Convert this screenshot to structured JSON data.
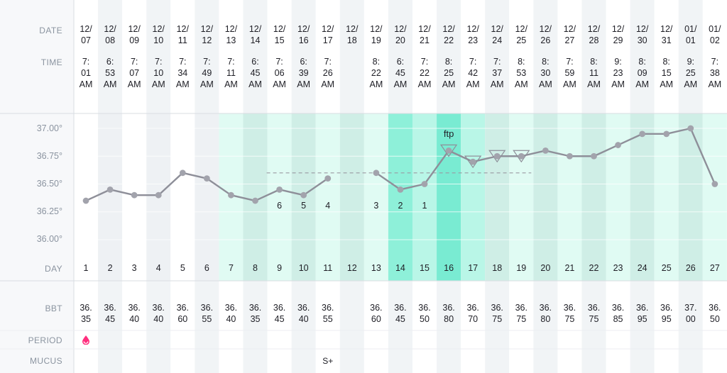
{
  "labels": {
    "date": "DATE",
    "time": "TIME",
    "day": "DAY",
    "bbt": "BBT",
    "period": "PERIOD",
    "mucus": "MUCUS",
    "ftp": "ftp"
  },
  "y_axis": {
    "ticks": [
      "37.00°",
      "36.75°",
      "36.50°",
      "36.25°",
      "36.00°"
    ],
    "values": [
      37.0,
      36.75,
      36.5,
      36.25,
      36.0
    ],
    "min": 36.0,
    "max": 37.0
  },
  "colors": {
    "line": "#8e8f99",
    "point": "#a2a3ac",
    "coverline": "#9a9aa2",
    "fertile": "#e0fbf3",
    "fertile_alt": "#cfeee6",
    "peak": "#8ef0d9",
    "peak_near": "#b9f6e7",
    "ovulation": "#79ebd2",
    "period_drop": "#ff2e7e"
  },
  "days": [
    {
      "day": "1",
      "date": "12/\n07",
      "time": "7:\n01\nAM",
      "bbt": "36.\n35",
      "temp": 36.35,
      "period": true
    },
    {
      "day": "2",
      "date": "12/\n08",
      "time": "6:\n53\nAM",
      "bbt": "36.\n45",
      "temp": 36.45
    },
    {
      "day": "3",
      "date": "12/\n09",
      "time": "7:\n07\nAM",
      "bbt": "36.\n40",
      "temp": 36.4
    },
    {
      "day": "4",
      "date": "12/\n10",
      "time": "7:\n10\nAM",
      "bbt": "36.\n40",
      "temp": 36.4
    },
    {
      "day": "5",
      "date": "12/\n11",
      "time": "7:\n34\nAM",
      "bbt": "36.\n60",
      "temp": 36.6
    },
    {
      "day": "6",
      "date": "12/\n12",
      "time": "7:\n49\nAM",
      "bbt": "36.\n55",
      "temp": 36.55
    },
    {
      "day": "7",
      "date": "12/\n13",
      "time": "7:\n11\nAM",
      "bbt": "36.\n40",
      "temp": 36.4
    },
    {
      "day": "8",
      "date": "12/\n14",
      "time": "6:\n45\nAM",
      "bbt": "36.\n35",
      "temp": 36.35
    },
    {
      "day": "9",
      "date": "12/\n15",
      "time": "7:\n06\nAM",
      "bbt": "36.\n45",
      "temp": 36.45,
      "count": "6"
    },
    {
      "day": "10",
      "date": "12/\n16",
      "time": "6:\n39\nAM",
      "bbt": "36.\n40",
      "temp": 36.4,
      "count": "5"
    },
    {
      "day": "11",
      "date": "12/\n17",
      "time": "7:\n26\nAM",
      "bbt": "36.\n55",
      "temp": 36.55,
      "count": "4",
      "mucus": "S+"
    },
    {
      "day": "12",
      "date": "12/\n18",
      "time": "",
      "bbt": "",
      "temp": null
    },
    {
      "day": "13",
      "date": "12/\n19",
      "time": "8:\n22\nAM",
      "bbt": "36.\n60",
      "temp": 36.6,
      "count": "3"
    },
    {
      "day": "14",
      "date": "12/\n20",
      "time": "6:\n45\nAM",
      "bbt": "36.\n45",
      "temp": 36.45,
      "count": "2"
    },
    {
      "day": "15",
      "date": "12/\n21",
      "time": "7:\n22\nAM",
      "bbt": "36.\n50",
      "temp": 36.5,
      "count": "1"
    },
    {
      "day": "16",
      "date": "12/\n22",
      "time": "8:\n25\nAM",
      "bbt": "36.\n80",
      "temp": 36.8,
      "marker": true
    },
    {
      "day": "17",
      "date": "12/\n23",
      "time": "7:\n42\nAM",
      "bbt": "36.\n70",
      "temp": 36.7,
      "marker": true
    },
    {
      "day": "18",
      "date": "12/\n24",
      "time": "7:\n37\nAM",
      "bbt": "36.\n75",
      "temp": 36.75,
      "marker": true
    },
    {
      "day": "19",
      "date": "12/\n25",
      "time": "8:\n53\nAM",
      "bbt": "36.\n75",
      "temp": 36.75,
      "marker": true
    },
    {
      "day": "20",
      "date": "12/\n26",
      "time": "8:\n30\nAM",
      "bbt": "36.\n80",
      "temp": 36.8
    },
    {
      "day": "21",
      "date": "12/\n27",
      "time": "7:\n59\nAM",
      "bbt": "36.\n75",
      "temp": 36.75
    },
    {
      "day": "22",
      "date": "12/\n28",
      "time": "8:\n11\nAM",
      "bbt": "36.\n75",
      "temp": 36.75
    },
    {
      "day": "23",
      "date": "12/\n29",
      "time": "9:\n23\nAM",
      "bbt": "36.\n85",
      "temp": 36.85
    },
    {
      "day": "24",
      "date": "12/\n30",
      "time": "8:\n09\nAM",
      "bbt": "36.\n95",
      "temp": 36.95
    },
    {
      "day": "25",
      "date": "12/\n31",
      "time": "8:\n15\nAM",
      "bbt": "36.\n95",
      "temp": 36.95
    },
    {
      "day": "26",
      "date": "01/\n01",
      "time": "9:\n25\nAM",
      "bbt": "37.\n00",
      "temp": 37.0
    },
    {
      "day": "27",
      "date": "01/\n02",
      "time": "7:\n38\nAM",
      "bbt": "36.\n50",
      "temp": 36.5
    }
  ],
  "coverline": {
    "value": 36.6,
    "from_day": 9,
    "to_day": 19
  },
  "ftp_day": 16,
  "chart_data": {
    "type": "line",
    "title": "",
    "xlabel": "DAY",
    "ylabel": "BBT",
    "x": [
      1,
      2,
      3,
      4,
      5,
      6,
      7,
      8,
      9,
      10,
      11,
      12,
      13,
      14,
      15,
      16,
      17,
      18,
      19,
      20,
      21,
      22,
      23,
      24,
      25,
      26,
      27
    ],
    "series": [
      {
        "name": "BBT",
        "values": [
          36.35,
          36.45,
          36.4,
          36.4,
          36.6,
          36.55,
          36.4,
          36.35,
          36.45,
          36.4,
          36.55,
          null,
          36.6,
          36.45,
          36.5,
          36.8,
          36.7,
          36.75,
          36.75,
          36.8,
          36.75,
          36.75,
          36.85,
          36.95,
          36.95,
          37.0,
          36.5
        ]
      }
    ],
    "ylim": [
      36.0,
      37.0
    ],
    "coverline": 36.6,
    "grid": true
  }
}
